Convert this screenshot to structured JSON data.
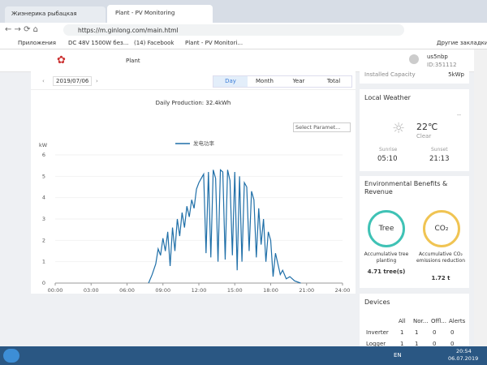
{
  "browser": {
    "tabs": [
      "Жиэнерика рыбацкая",
      "Plant - PV Monitoring"
    ],
    "url": "https://m.ginlong.com/main.html",
    "bookmarks": [
      "Приложения",
      "DC 48V 1500W без...",
      "(14) Facebook",
      "Plant - PV Monitori...",
      "Другие закладки"
    ]
  },
  "header": {
    "nav": "Plant",
    "user": "us5nbp",
    "user_id": "ID:351112"
  },
  "capacity": {
    "label": "Installed Capacity",
    "value": "5kWp"
  },
  "toolbar": {
    "date": "2019/07/06",
    "periods": [
      "Day",
      "Month",
      "Year",
      "Total"
    ],
    "production": "Daily Production: 32.4kWh",
    "select": "Select Paramet..."
  },
  "chart_data": {
    "type": "line",
    "y_label": "kW",
    "xlim": [
      0,
      24
    ],
    "ylim": [
      0,
      6
    ],
    "yticks": [
      0,
      1,
      2,
      3,
      4,
      5,
      6
    ],
    "xticks": [
      {
        "value": 0,
        "label": "00:00"
      },
      {
        "value": 3,
        "label": "03:00"
      },
      {
        "value": 6,
        "label": "06:00"
      },
      {
        "value": 9,
        "label": "09:00"
      },
      {
        "value": 12,
        "label": "12:00"
      },
      {
        "value": 15,
        "label": "15:00"
      },
      {
        "value": 18,
        "label": "18:00"
      },
      {
        "value": 21,
        "label": "21:00"
      },
      {
        "value": 24,
        "label": "24:00"
      }
    ],
    "x": [
      7.8,
      8.1,
      8.4,
      8.6,
      8.8,
      9.0,
      9.2,
      9.4,
      9.6,
      9.8,
      10.0,
      10.2,
      10.4,
      10.6,
      10.8,
      11.0,
      11.2,
      11.4,
      11.6,
      11.8,
      12.0,
      12.2,
      12.4,
      12.6,
      12.8,
      13.0,
      13.2,
      13.4,
      13.6,
      13.8,
      14.0,
      14.2,
      14.4,
      14.6,
      14.8,
      15.0,
      15.2,
      15.4,
      15.6,
      15.8,
      16.0,
      16.2,
      16.4,
      16.6,
      16.8,
      17.0,
      17.2,
      17.4,
      17.6,
      17.8,
      18.0,
      18.2,
      18.4,
      18.6,
      18.8,
      19.0,
      19.3,
      19.6,
      20.0,
      20.5
    ],
    "series": [
      {
        "name": "发电功率",
        "color": "#1f6fa8",
        "values": [
          0,
          0.4,
          0.9,
          1.6,
          1.3,
          2.1,
          1.5,
          2.4,
          0.8,
          2.6,
          1.5,
          3.0,
          2.2,
          3.3,
          2.6,
          3.6,
          3.1,
          3.9,
          3.5,
          4.4,
          4.7,
          4.9,
          5.1,
          1.4,
          5.2,
          1.2,
          5.3,
          4.9,
          1.0,
          5.3,
          5.2,
          1.1,
          5.3,
          4.8,
          1.3,
          5.2,
          0.6,
          5.0,
          1.0,
          4.7,
          4.5,
          1.5,
          4.3,
          3.9,
          1.2,
          3.5,
          1.8,
          3.0,
          1.0,
          2.4,
          2.0,
          0.3,
          1.4,
          0.9,
          0.4,
          0.6,
          0.2,
          0.3,
          0.1,
          0
        ]
      }
    ]
  },
  "weather": {
    "title": "Local Weather",
    "location": "--",
    "temp": "22℃",
    "condition": "Clear",
    "sunrise_label": "Sunrise",
    "sunrise": "05:10",
    "sunset_label": "Sunset",
    "sunset": "21:13"
  },
  "benefits": {
    "title": "Environmental Benefits & Revenue",
    "tree": "Tree",
    "co2": "CO₂",
    "tree_label": "Accumulative tree planting",
    "tree_value": "4.71 tree(s)",
    "co2_label": "Accumulative CO₂ emissions reduction",
    "co2_value": "1.72 t"
  },
  "devices": {
    "title": "Devices",
    "header": [
      "All",
      "Nor...",
      "Offl...",
      "Alerts"
    ],
    "rows": [
      [
        "Inverter",
        1,
        1,
        0,
        0
      ],
      [
        "Logger",
        1,
        1,
        0,
        0
      ]
    ]
  },
  "taskbar": {
    "lang": "EN",
    "time": "20:54",
    "date": "06.07.2019"
  }
}
